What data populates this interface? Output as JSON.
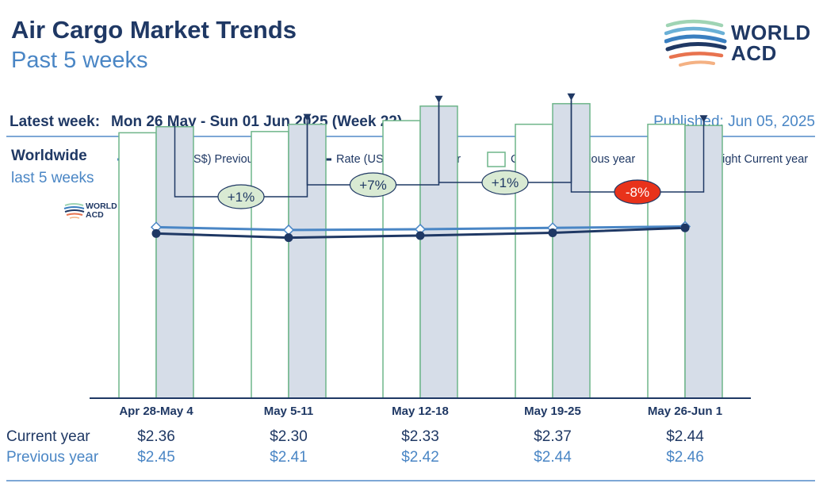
{
  "header": {
    "title": "Air Cargo Market Trends",
    "subtitle": "Past 5 weeks",
    "logo_line1": "WORLD",
    "logo_line2": "ACD"
  },
  "info": {
    "latest_label": "Latest week:",
    "latest_value": "Mon 26 May - Sun 01 Jun 2025 (Week 22)",
    "published": "Published: Jun 05, 2025"
  },
  "region": {
    "name": "Worldwide",
    "period": "last 5 weeks"
  },
  "colors": {
    "navy": "#1f3864",
    "light_blue": "#4a86c5",
    "bar_prev_fill": "#ffffff",
    "bar_cur_fill": "#d6dde8",
    "bar_stroke": "#6fb58a",
    "badge_up": "#d9ead3",
    "badge_down": "#e8321a"
  },
  "row_labels": {
    "current": "Current year",
    "previous": "Previous year"
  },
  "chart_data": {
    "type": "bar",
    "categories": [
      "Apr 28-May 4",
      "May 5-11",
      "May 12-18",
      "May 19-25",
      "May 26-Jun 1"
    ],
    "series": [
      {
        "name": "Ch.weight Previous year",
        "kind": "bar",
        "values": [
          219,
          220,
          229,
          226,
          226
        ]
      },
      {
        "name": "Ch.weight Current year",
        "kind": "bar",
        "values": [
          224,
          226,
          241,
          243,
          225
        ]
      },
      {
        "name": "Rate (US$) Previous year",
        "kind": "line",
        "values": [
          2.45,
          2.41,
          2.42,
          2.44,
          2.46
        ]
      },
      {
        "name": "Rate (US$) Current year",
        "kind": "line",
        "values": [
          2.36,
          2.3,
          2.33,
          2.37,
          2.44
        ]
      }
    ],
    "weight_ylim": [
      0,
      250
    ],
    "rate_ylim": [
      0,
      5.5
    ],
    "week_changes": [
      "+1%",
      "+7%",
      "+1%",
      "-8%"
    ],
    "rates_current_text": [
      "$2.36",
      "$2.30",
      "$2.33",
      "$2.37",
      "$2.44"
    ],
    "rates_previous_text": [
      "$2.45",
      "$2.41",
      "$2.42",
      "$2.44",
      "$2.46"
    ],
    "legend": [
      "Rate (US$) Previous year",
      "Rate (US$) Current year",
      "Ch.weight Previous year",
      "Ch.weight Current year"
    ],
    "legend_position": "top",
    "grid": false
  }
}
